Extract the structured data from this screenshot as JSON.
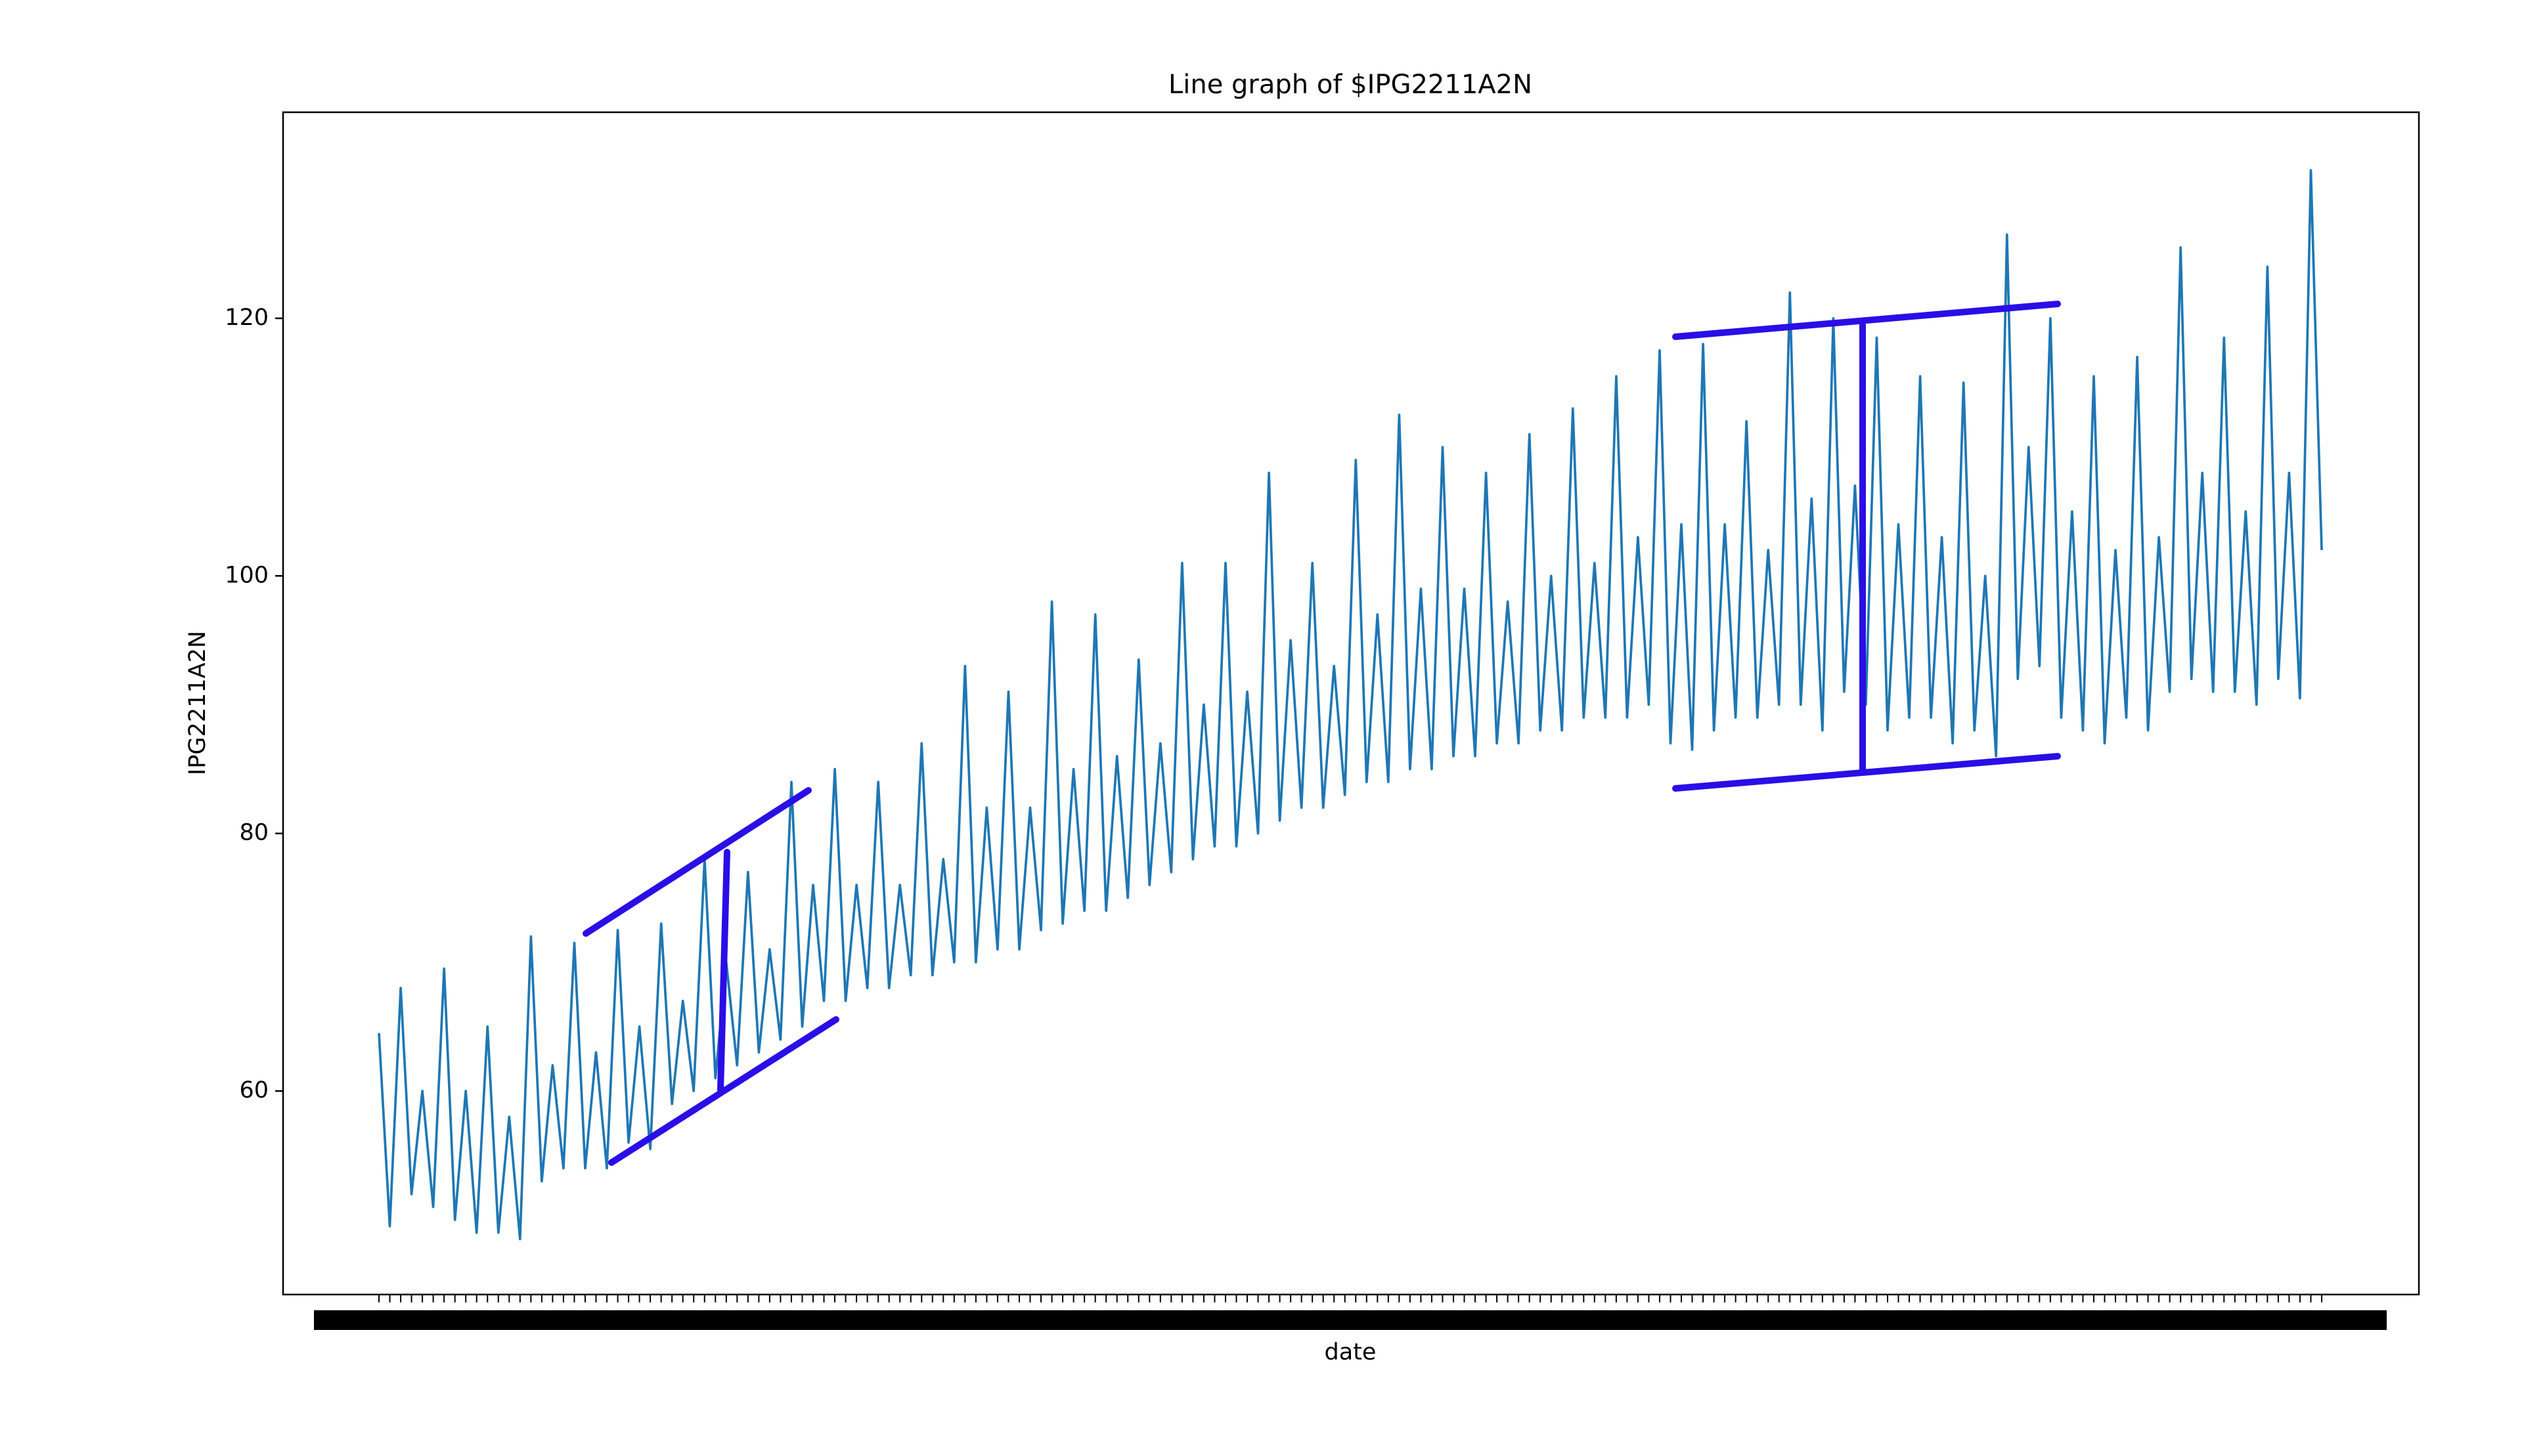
{
  "chart_data": {
    "type": "line",
    "title": "Line graph of $IPG2211A2N",
    "x_label": "date",
    "y_label": "IPG2211A2N",
    "categories": [
      null,
      null,
      null,
      null,
      null,
      null,
      null,
      null,
      null,
      null,
      null,
      null,
      null,
      null,
      null,
      null,
      null,
      null,
      null,
      null,
      null,
      null,
      null,
      null,
      null,
      null,
      null,
      null,
      null,
      null,
      null,
      null,
      null,
      null,
      null,
      null,
      null,
      null,
      null,
      null,
      null,
      null,
      null,
      null,
      null,
      null,
      null,
      null,
      null,
      null,
      null,
      null,
      null,
      null,
      null,
      null,
      null,
      null,
      null,
      null,
      null,
      null,
      null,
      null,
      null,
      null,
      null,
      null,
      null,
      null,
      null,
      null,
      null,
      null,
      null,
      null,
      null,
      null,
      null,
      null,
      null,
      null,
      null,
      null,
      null,
      null,
      null,
      null,
      null,
      null,
      null,
      null,
      null,
      null,
      null,
      null,
      null,
      null,
      null,
      null,
      null,
      null,
      null,
      null,
      null,
      null,
      null,
      null,
      null,
      null,
      null,
      null,
      null,
      null,
      null,
      null,
      null,
      null,
      null,
      null,
      null,
      null,
      null,
      null,
      null,
      null,
      null,
      null,
      null,
      null,
      null,
      null,
      null,
      null,
      null,
      null,
      null,
      null,
      null,
      null,
      null,
      null,
      null,
      null,
      null,
      null,
      null,
      null,
      null,
      null,
      null,
      null,
      null,
      null,
      null,
      null,
      null,
      null,
      null,
      null,
      null,
      null,
      null,
      null,
      null,
      null,
      null,
      null,
      null,
      null,
      null,
      null,
      null,
      null,
      null,
      null,
      null,
      null,
      null,
      null
    ],
    "series": [
      {
        "name": "IPG2211A2N",
        "color": "#1f77b4",
        "values": [
          64.5,
          49.5,
          68,
          52,
          60,
          51,
          69.5,
          50,
          60,
          49,
          65,
          49,
          58,
          48.5,
          72,
          53,
          62,
          54,
          71.5,
          54,
          63,
          54,
          72.5,
          56,
          65,
          55.5,
          73,
          59,
          67,
          60,
          78,
          61,
          70,
          62,
          77,
          63,
          71,
          64,
          84,
          65,
          76,
          67,
          85,
          67,
          76,
          68,
          84,
          68,
          76,
          69,
          87,
          69,
          78,
          70,
          93,
          70,
          82,
          71,
          91,
          71,
          82,
          72.5,
          98,
          73,
          85,
          74,
          97,
          74,
          86,
          75,
          93.5,
          76,
          87,
          77,
          101,
          78,
          90,
          79,
          101,
          79,
          91,
          80,
          108,
          81,
          95,
          82,
          101,
          82,
          93,
          83,
          109,
          84,
          97,
          84,
          112.5,
          85,
          99,
          85,
          110,
          86,
          99,
          86,
          108,
          87,
          98,
          87,
          111,
          88,
          100,
          88,
          113,
          89,
          101,
          89,
          115.5,
          89,
          103,
          90,
          117.5,
          87,
          104,
          86.5,
          118,
          88,
          104,
          89,
          112,
          89,
          102,
          90,
          122,
          90,
          106,
          88,
          120,
          91,
          107,
          90,
          118.5,
          88,
          104,
          89,
          115.5,
          89,
          103,
          87,
          115,
          88,
          100,
          86,
          126.5,
          92,
          110,
          93,
          120,
          89,
          105,
          88,
          115.5,
          87,
          102,
          89,
          117,
          88,
          103,
          91,
          125.5,
          92,
          108,
          91,
          118.5,
          91,
          105,
          90,
          124,
          92,
          108,
          90.5,
          131.5,
          102
        ]
      }
    ],
    "ylim": [
      44.2,
      136.0
    ],
    "yticks": [
      60,
      80,
      100,
      120
    ],
    "grid": false
  }
}
